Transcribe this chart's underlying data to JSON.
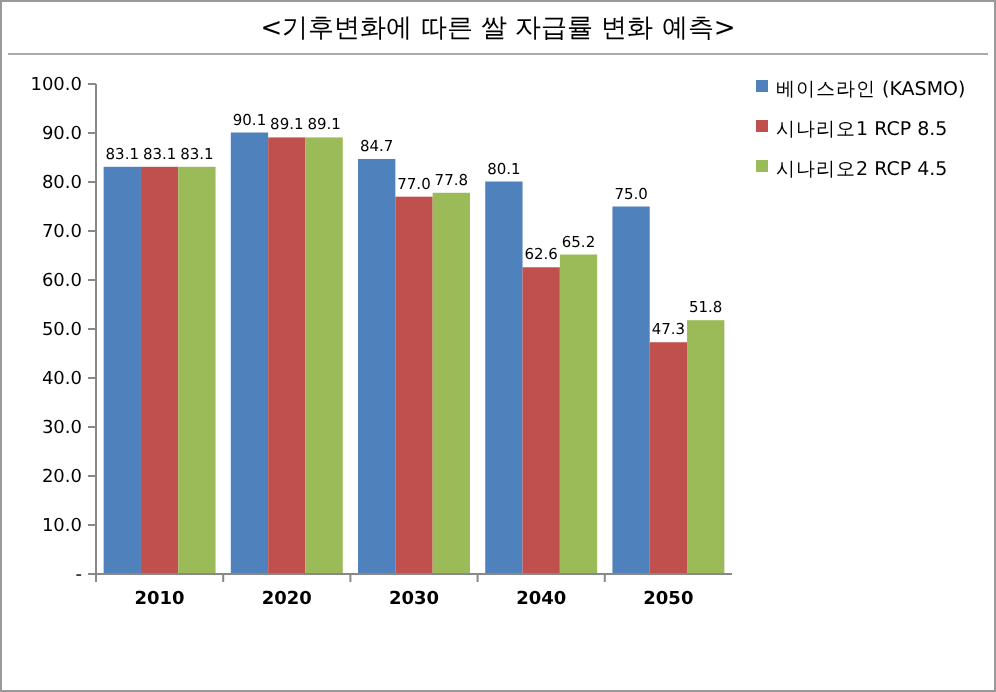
{
  "chart_data": {
    "type": "bar",
    "title": "<기후변화에 따른 쌀 자급률 변화 예측>",
    "categories": [
      "2010",
      "2020",
      "2030",
      "2040",
      "2050"
    ],
    "series": [
      {
        "name": "베이스라인 (KASMO)",
        "color": "#4f81bd",
        "values": [
          83.1,
          90.1,
          84.7,
          80.1,
          75.0
        ],
        "value_labels": [
          "83.1",
          "90.1",
          "84.7",
          "80.1",
          "75.0"
        ]
      },
      {
        "name": "시나리오1 RCP 8.5",
        "color": "#c0504d",
        "values": [
          83.1,
          89.1,
          77.0,
          62.6,
          47.3
        ],
        "value_labels": [
          "83.1",
          "89.1",
          "77.0",
          "62.6",
          "47.3"
        ]
      },
      {
        "name": "시나리오2 RCP 4.5",
        "color": "#9bbb59",
        "values": [
          83.1,
          89.1,
          77.8,
          65.2,
          51.8
        ],
        "value_labels": [
          "83.1",
          "89.1",
          "77.8",
          "65.2",
          "51.8"
        ]
      }
    ],
    "ylim": [
      0,
      100
    ],
    "yticks": [
      {
        "value": 0,
        "label": "-"
      },
      {
        "value": 10,
        "label": "10.0"
      },
      {
        "value": 20,
        "label": "20.0"
      },
      {
        "value": 30,
        "label": "30.0"
      },
      {
        "value": 40,
        "label": "40.0"
      },
      {
        "value": 50,
        "label": "50.0"
      },
      {
        "value": 60,
        "label": "60.0"
      },
      {
        "value": 70,
        "label": "70.0"
      },
      {
        "value": 80,
        "label": "80.0"
      },
      {
        "value": 90,
        "label": "90.0"
      },
      {
        "value": 100,
        "label": "100.0"
      }
    ],
    "grid": false,
    "legend": "top right"
  }
}
